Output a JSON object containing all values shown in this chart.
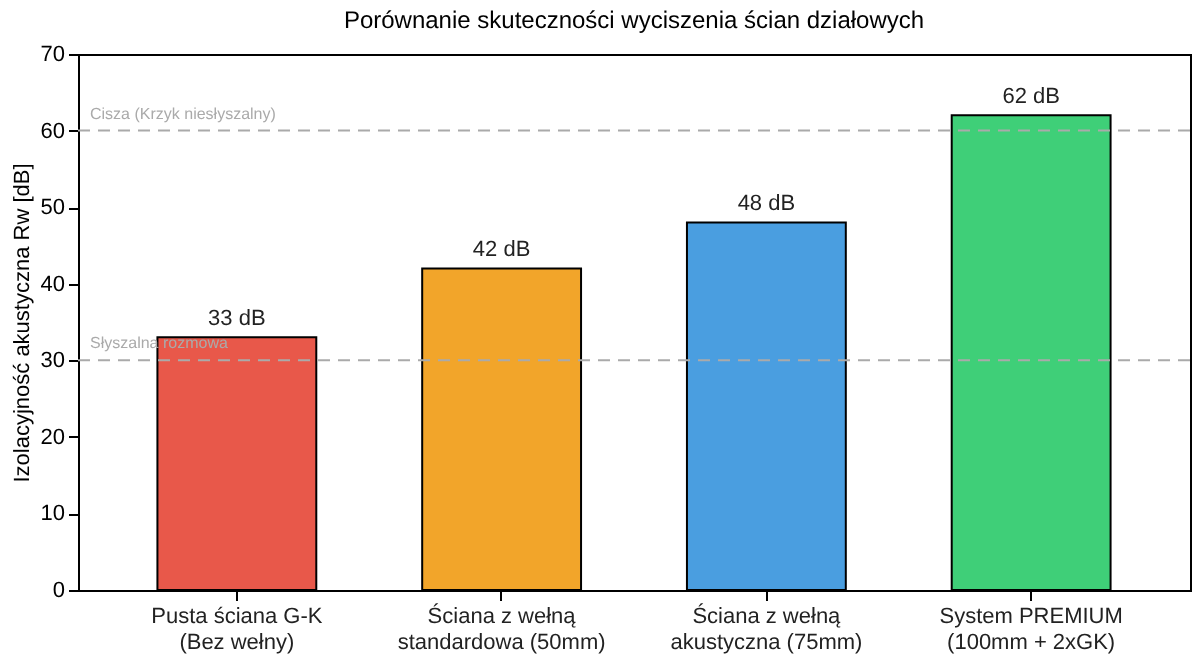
{
  "chart_data": {
    "type": "bar",
    "title": "Porównanie skuteczności wyciszenia ścian działowych",
    "ylabel": "Izolacyjność akustyczna Rw [dB]",
    "categories": [
      "Pusta ściana G-K\n(Bez wełny)",
      "Ściana z wełną\nstandardowa (50mm)",
      "Ściana z wełną\nakustyczna (75mm)",
      "System PREMIUM\n(100mm + 2xGK)"
    ],
    "values": [
      33,
      42,
      48,
      62
    ],
    "colors": [
      "#e8584a",
      "#f2a52a",
      "#4a9ee0",
      "#3fcf78"
    ],
    "value_labels": [
      "33 dB",
      "42 dB",
      "48 dB",
      "62 dB"
    ],
    "ylim": [
      0,
      70
    ],
    "yticks": [
      0,
      10,
      20,
      30,
      40,
      50,
      60,
      70
    ],
    "grid": false,
    "ref_lines": [
      {
        "axis": "y",
        "value": 60,
        "label": "Cisza (Krzyk niesłyszalny)",
        "color": "#aaaaaa",
        "line_style": "dashed"
      },
      {
        "axis": "y",
        "value": 30,
        "label": "Słyszalna rozmowa",
        "color": "#aaaaaa",
        "line_style": "dashed"
      }
    ]
  }
}
